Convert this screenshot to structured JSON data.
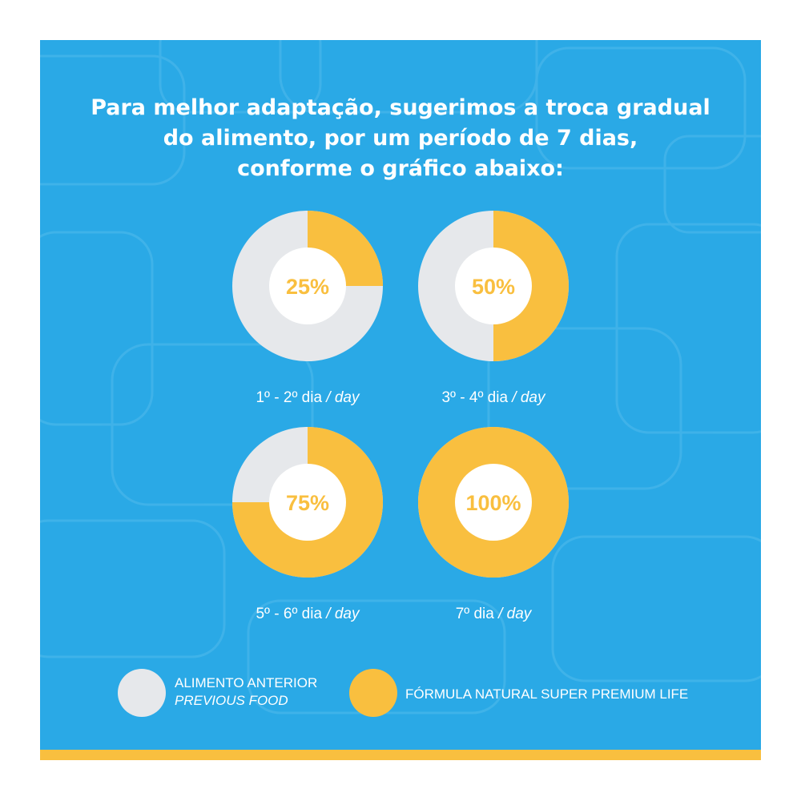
{
  "title_lines": [
    "Para melhor adaptação, sugerimos a troca gradual",
    "do alimento, por um período de 7 dias,",
    "conforme o gráfico abaixo:"
  ],
  "colors": {
    "background": "#2aa9e6",
    "previous_food": "#e6e8eb",
    "new_food": "#f9bf3f",
    "strip": "#f9bf3f"
  },
  "chart_data": {
    "type": "pie",
    "charts": [
      {
        "percent_label": "25%",
        "value_new": 25,
        "value_previous": 75,
        "day_range": "1º - 2º dia",
        "day_unit": "day"
      },
      {
        "percent_label": "50%",
        "value_new": 50,
        "value_previous": 50,
        "day_range": "3º - 4º dia",
        "day_unit": "day"
      },
      {
        "percent_label": "75%",
        "value_new": 75,
        "value_previous": 25,
        "day_range": "5º - 6º dia",
        "day_unit": "day"
      },
      {
        "percent_label": "100%",
        "value_new": 100,
        "value_previous": 0,
        "day_range": "7º dia",
        "day_unit": "day"
      }
    ],
    "legend": [
      {
        "label": "ALIMENTO ANTERIOR",
        "sublabel": "PREVIOUS FOOD",
        "color": "#e6e8eb"
      },
      {
        "label": "FÓRMULA NATURAL SUPER PREMIUM LIFE",
        "sublabel": "",
        "color": "#f9bf3f"
      }
    ]
  }
}
